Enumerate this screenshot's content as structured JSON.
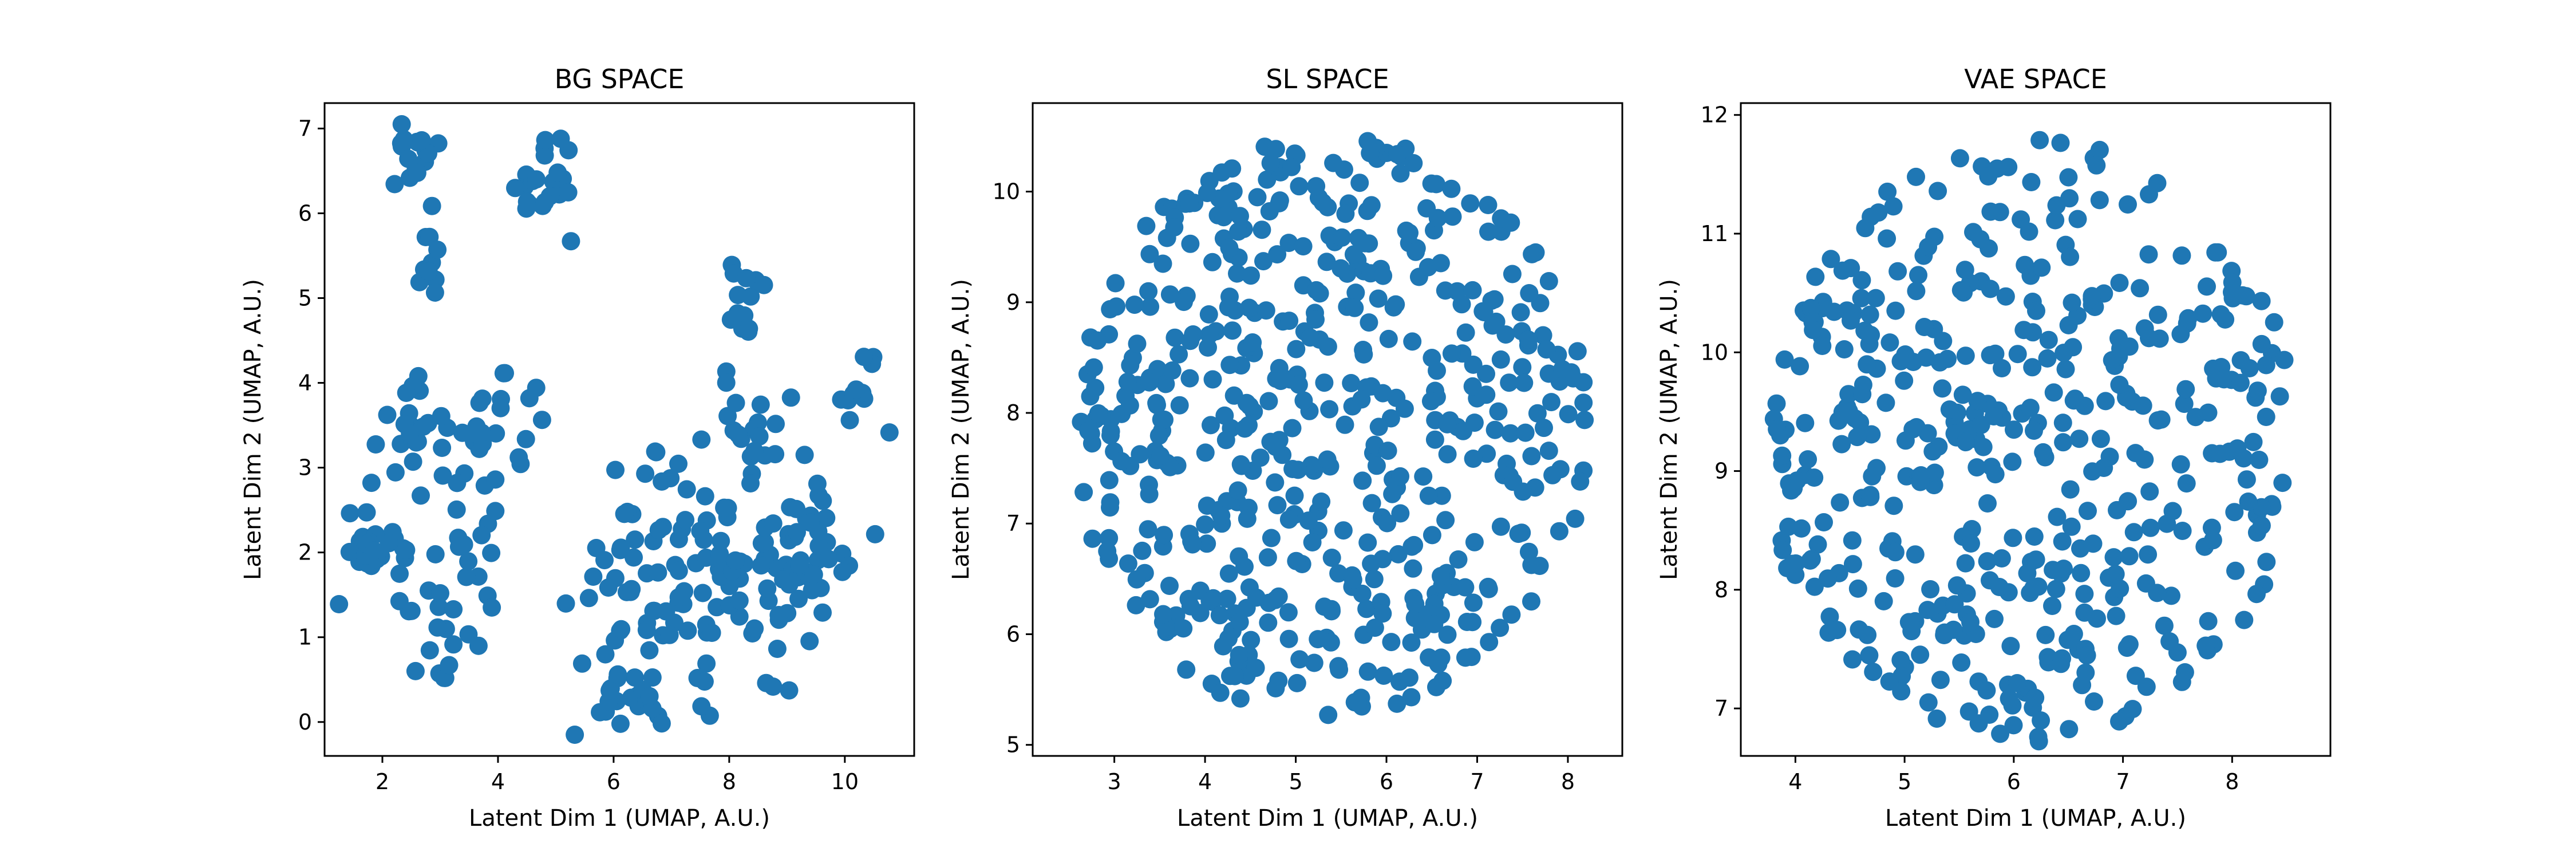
{
  "chart_data": [
    {
      "type": "scatter",
      "title": "BG SPACE",
      "xlabel": "Latent Dim 1 (UMAP, A.U.)",
      "ylabel": "Latent Dim 2 (UMAP, A.U.)",
      "xlim": [
        1.0,
        11.2
      ],
      "ylim": [
        -0.4,
        7.3
      ],
      "xticks": [
        2,
        4,
        6,
        8,
        10
      ],
      "yticks": [
        0,
        1,
        2,
        3,
        4,
        5,
        6,
        7
      ],
      "color": "#1f77b4",
      "grid": false,
      "clusters": [
        {
          "cx": 2.5,
          "cy": 6.7,
          "sx": 0.25,
          "sy": 0.2,
          "n": 16
        },
        {
          "cx": 2.8,
          "cy": 5.35,
          "sx": 0.12,
          "sy": 0.3,
          "n": 10
        },
        {
          "cx": 4.8,
          "cy": 6.35,
          "sx": 0.35,
          "sy": 0.3,
          "n": 22
        },
        {
          "cx": 8.25,
          "cy": 5.1,
          "sx": 0.15,
          "sy": 0.35,
          "n": 14
        },
        {
          "cx": 2.5,
          "cy": 3.6,
          "sx": 0.3,
          "sy": 0.35,
          "n": 18
        },
        {
          "cx": 3.8,
          "cy": 3.3,
          "sx": 0.55,
          "sy": 0.4,
          "n": 34
        },
        {
          "cx": 2.0,
          "cy": 2.0,
          "sx": 0.35,
          "sy": 0.3,
          "n": 26
        },
        {
          "cx": 2.9,
          "cy": 1.2,
          "sx": 0.3,
          "sy": 0.25,
          "n": 16
        },
        {
          "cx": 3.4,
          "cy": 2.0,
          "sx": 0.3,
          "sy": 0.35,
          "n": 12
        },
        {
          "cx": 6.5,
          "cy": 1.4,
          "sx": 0.6,
          "sy": 0.7,
          "n": 60
        },
        {
          "cx": 6.3,
          "cy": 0.3,
          "sx": 0.4,
          "sy": 0.2,
          "n": 16
        },
        {
          "cx": 8.3,
          "cy": 1.2,
          "sx": 0.5,
          "sy": 0.55,
          "n": 38
        },
        {
          "cx": 9.5,
          "cy": 2.1,
          "sx": 0.55,
          "sy": 0.4,
          "n": 38
        },
        {
          "cx": 8.4,
          "cy": 3.5,
          "sx": 0.6,
          "sy": 0.25,
          "n": 18
        },
        {
          "cx": 10.3,
          "cy": 3.9,
          "sx": 0.25,
          "sy": 0.25,
          "n": 12
        },
        {
          "cx": 7.9,
          "cy": 2.3,
          "sx": 0.4,
          "sy": 0.3,
          "n": 16
        }
      ]
    },
    {
      "type": "scatter",
      "title": "SL SPACE",
      "xlabel": "Latent Dim 1 (UMAP, A.U.)",
      "ylabel": "Latent Dim 2 (UMAP, A.U.)",
      "xlim": [
        2.1,
        8.6
      ],
      "ylim": [
        4.9,
        10.8
      ],
      "xticks": [
        3,
        4,
        5,
        6,
        7,
        8
      ],
      "yticks": [
        5,
        6,
        7,
        8,
        9,
        10
      ],
      "color": "#1f77b4",
      "grid": false,
      "blob": {
        "cx": 5.4,
        "cy": 7.85,
        "rx": 2.85,
        "ry": 2.65,
        "n": 540
      }
    },
    {
      "type": "scatter",
      "title": "VAE SPACE",
      "xlabel": "Latent Dim 1 (UMAP, A.U.)",
      "ylabel": "Latent Dim 2 (UMAP, A.U.)",
      "xlim": [
        3.5,
        8.9
      ],
      "ylim": [
        6.6,
        12.1
      ],
      "xticks": [
        4,
        5,
        6,
        7,
        8
      ],
      "yticks": [
        7,
        8,
        9,
        10,
        11,
        12
      ],
      "color": "#1f77b4",
      "grid": false,
      "blob": {
        "cx": 6.15,
        "cy": 9.25,
        "rx": 2.45,
        "ry": 2.55,
        "n": 460
      }
    }
  ]
}
